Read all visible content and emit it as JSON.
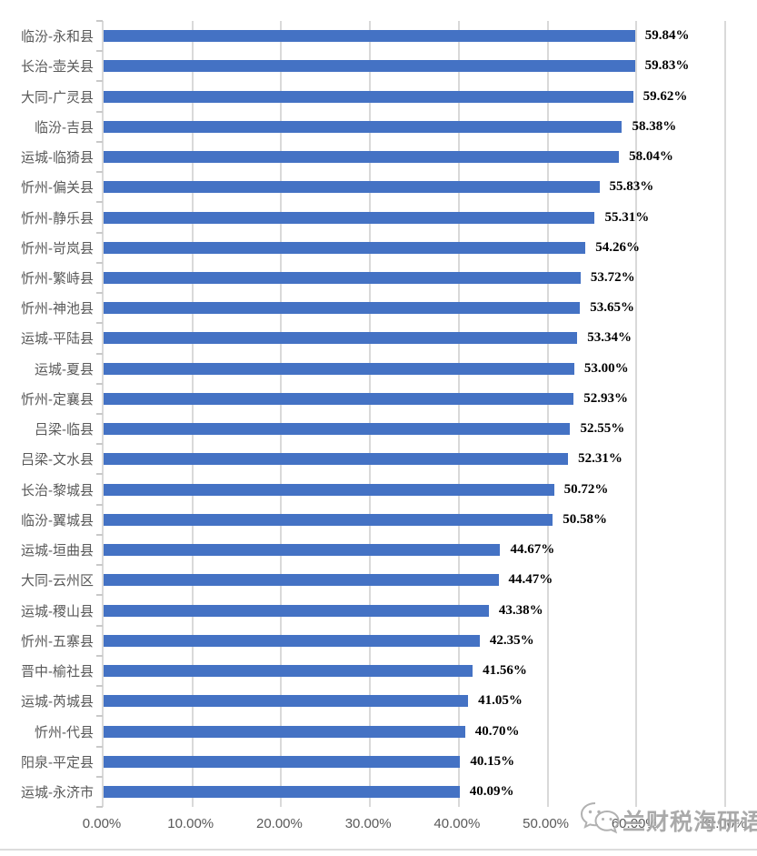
{
  "chart_data": {
    "type": "bar",
    "orientation": "horizontal",
    "title": "",
    "xlabel": "",
    "ylabel": "",
    "xlim": [
      0,
      70
    ],
    "grid": true,
    "bar_color": "#4472C4",
    "gridline_color": "#D9D9D9",
    "x_ticks": [
      "0.00%",
      "10.00%",
      "20.00%",
      "30.00%",
      "40.00%",
      "50.00%",
      "60.00%",
      "70.00%"
    ],
    "categories": [
      "临汾-永和县",
      "长治-壶关县",
      "大同-广灵县",
      "临汾-吉县",
      "运城-临猗县",
      "忻州-偏关县",
      "忻州-静乐县",
      "忻州-岢岚县",
      "忻州-繁峙县",
      "忻州-神池县",
      "运城-平陆县",
      "运城-夏县",
      "忻州-定襄县",
      "吕梁-临县",
      "吕梁-文水县",
      "长治-黎城县",
      "临汾-翼城县",
      "运城-垣曲县",
      "大同-云州区",
      "运城-稷山县",
      "忻州-五寨县",
      "晋中-榆社县",
      "运城-芮城县",
      "忻州-代县",
      "阳泉-平定县",
      "运城-永济市"
    ],
    "values": [
      59.84,
      59.83,
      59.62,
      58.38,
      58.04,
      55.83,
      55.31,
      54.26,
      53.72,
      53.65,
      53.34,
      53.0,
      52.93,
      52.55,
      52.31,
      50.72,
      50.58,
      44.67,
      44.47,
      43.38,
      42.35,
      41.56,
      41.05,
      40.7,
      40.15,
      40.09
    ],
    "data_labels": [
      "59.84%",
      "59.83%",
      "59.62%",
      "58.38%",
      "58.04%",
      "55.83%",
      "55.31%",
      "54.26%",
      "53.72%",
      "53.65%",
      "53.34%",
      "53.00%",
      "52.93%",
      "52.55%",
      "52.31%",
      "50.72%",
      "50.58%",
      "44.67%",
      "44.47%",
      "43.38%",
      "42.35%",
      "41.56%",
      "41.05%",
      "40.70%",
      "40.15%",
      "40.09%"
    ]
  },
  "watermark": {
    "text": "兰财税海研语",
    "icon": "wechat-icon"
  }
}
